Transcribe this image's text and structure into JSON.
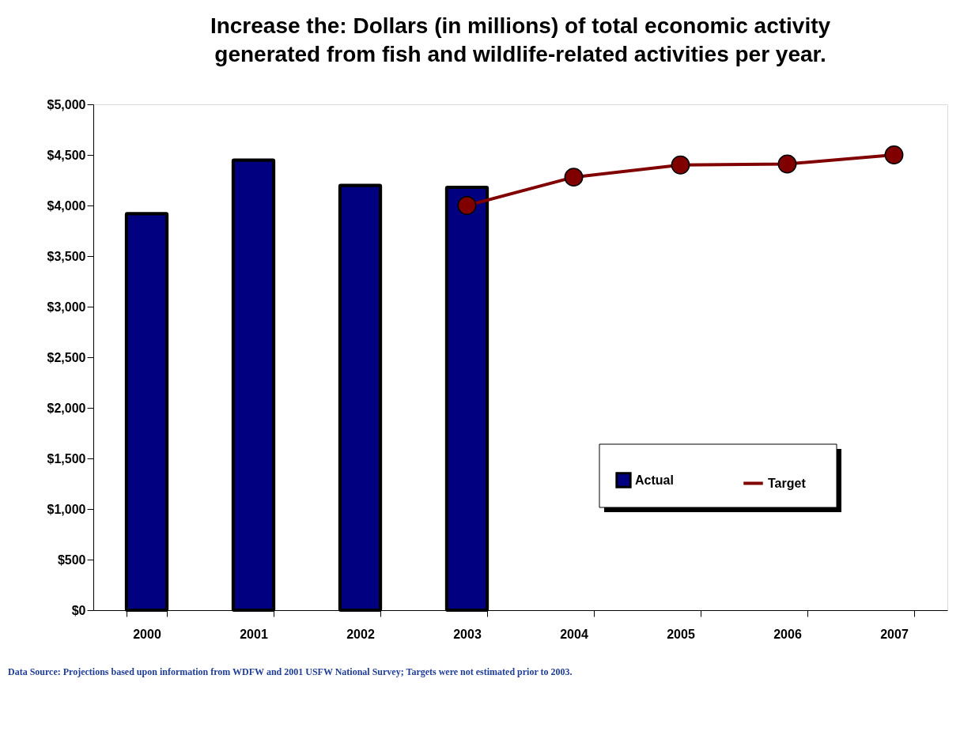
{
  "chart_data": {
    "type": "bar",
    "title": "Increase the: Dollars (in millions) of total economic activity generated from fish and wildlife-related activities per year.",
    "categories": [
      "2000",
      "2001",
      "2002",
      "2003",
      "2004",
      "2005",
      "2006",
      "2007"
    ],
    "series": [
      {
        "name": "Actual",
        "color": "#000080",
        "values": [
          3920,
          4450,
          4200,
          4180,
          null,
          null,
          null,
          null
        ]
      },
      {
        "name": "Target",
        "type": "line",
        "color": "#800000",
        "values": [
          null,
          null,
          null,
          4000,
          4280,
          4400,
          4410,
          4500
        ]
      }
    ],
    "ylim": [
      0,
      5000
    ],
    "yticks": [
      {
        "value": 0,
        "label": "$0"
      },
      {
        "value": 500,
        "label": "$500"
      },
      {
        "value": 1000,
        "label": "$1,000"
      },
      {
        "value": 1500,
        "label": "$1,500"
      },
      {
        "value": 2000,
        "label": "$2,000"
      },
      {
        "value": 2500,
        "label": "$2,500"
      },
      {
        "value": 3000,
        "label": "$3,000"
      },
      {
        "value": 3500,
        "label": "$3,500"
      },
      {
        "value": 4000,
        "label": "$4,000"
      },
      {
        "value": 4500,
        "label": "$4,500"
      },
      {
        "value": 5000,
        "label": "$5,000"
      }
    ],
    "grid": false,
    "legend": "bottom right",
    "marker": "circle",
    "line_style": "solid",
    "annotations": [
      "Data Source: Projections based upon information from WDFW and 2001 USFW National Survey; Targets were not estimated prior to 2003."
    ]
  }
}
